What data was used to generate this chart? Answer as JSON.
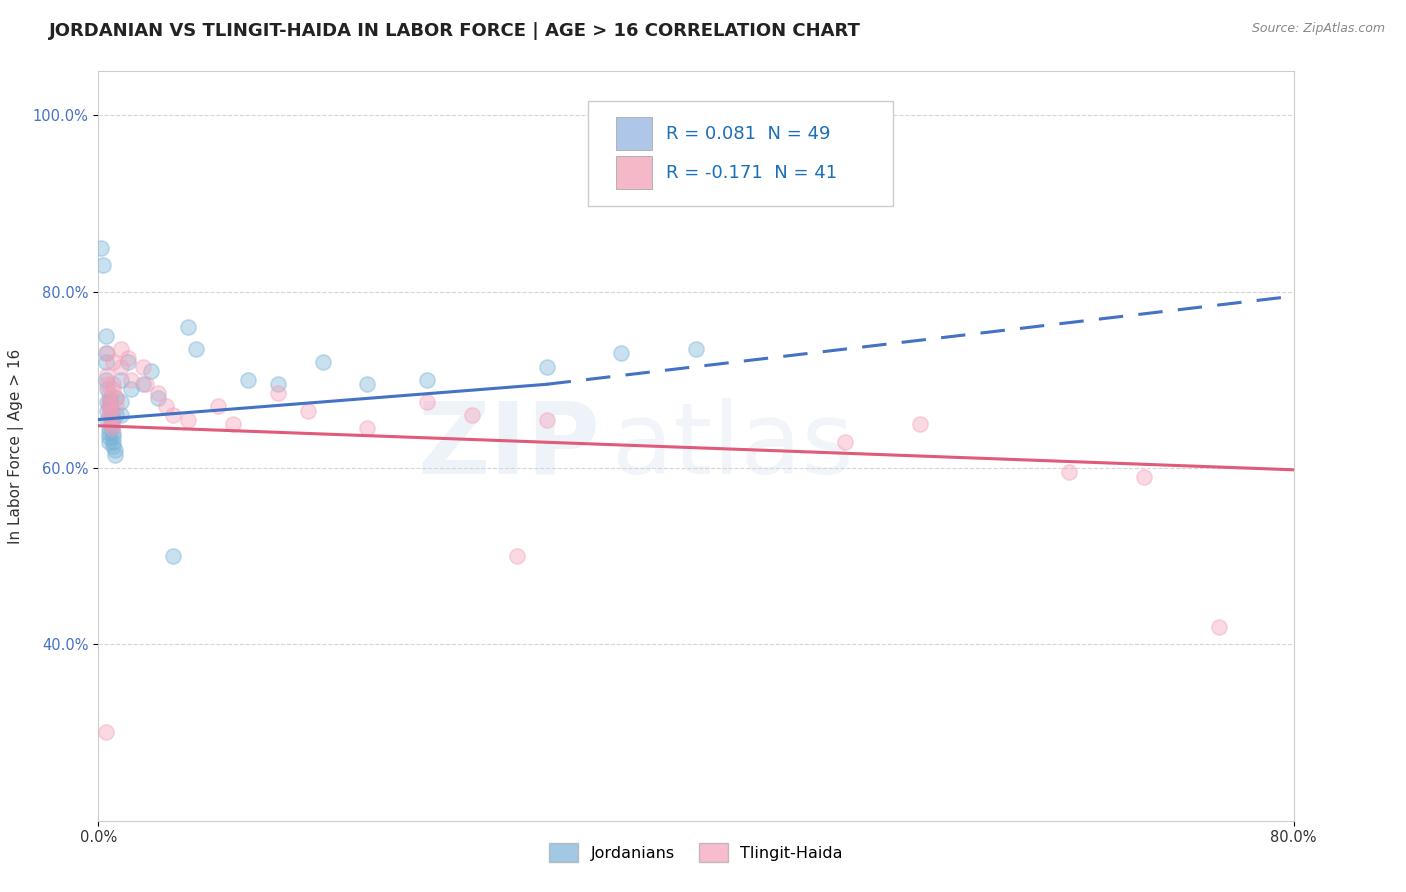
{
  "title": "JORDANIAN VS TLINGIT-HAIDA IN LABOR FORCE | AGE > 16 CORRELATION CHART",
  "source": "Source: ZipAtlas.com",
  "ylabel_label": "In Labor Force | Age > 16",
  "xmin": 0.0,
  "xmax": 0.8,
  "ymin": 0.2,
  "ymax": 1.05,
  "yticks": [
    0.4,
    0.6,
    0.8,
    1.0
  ],
  "ytick_labels": [
    "40.0%",
    "60.0%",
    "80.0%",
    "100.0%"
  ],
  "jordanian_color": "#7ab3d8",
  "tlingit_color": "#f4a0b8",
  "jordanian_scatter": [
    [
      0.002,
      0.85
    ],
    [
      0.003,
      0.83
    ],
    [
      0.005,
      0.75
    ],
    [
      0.005,
      0.73
    ],
    [
      0.005,
      0.72
    ],
    [
      0.005,
      0.7
    ],
    [
      0.006,
      0.69
    ],
    [
      0.006,
      0.675
    ],
    [
      0.006,
      0.665
    ],
    [
      0.006,
      0.655
    ],
    [
      0.007,
      0.645
    ],
    [
      0.007,
      0.64
    ],
    [
      0.007,
      0.635
    ],
    [
      0.007,
      0.63
    ],
    [
      0.008,
      0.68
    ],
    [
      0.008,
      0.675
    ],
    [
      0.008,
      0.67
    ],
    [
      0.008,
      0.665
    ],
    [
      0.009,
      0.66
    ],
    [
      0.009,
      0.655
    ],
    [
      0.009,
      0.65
    ],
    [
      0.009,
      0.645
    ],
    [
      0.01,
      0.64
    ],
    [
      0.01,
      0.635
    ],
    [
      0.01,
      0.63
    ],
    [
      0.01,
      0.625
    ],
    [
      0.011,
      0.62
    ],
    [
      0.011,
      0.615
    ],
    [
      0.012,
      0.68
    ],
    [
      0.012,
      0.66
    ],
    [
      0.015,
      0.7
    ],
    [
      0.015,
      0.675
    ],
    [
      0.015,
      0.66
    ],
    [
      0.02,
      0.72
    ],
    [
      0.022,
      0.69
    ],
    [
      0.03,
      0.695
    ],
    [
      0.035,
      0.71
    ],
    [
      0.04,
      0.68
    ],
    [
      0.05,
      0.5
    ],
    [
      0.06,
      0.76
    ],
    [
      0.065,
      0.735
    ],
    [
      0.1,
      0.7
    ],
    [
      0.12,
      0.695
    ],
    [
      0.15,
      0.72
    ],
    [
      0.18,
      0.695
    ],
    [
      0.22,
      0.7
    ],
    [
      0.3,
      0.715
    ],
    [
      0.35,
      0.73
    ],
    [
      0.4,
      0.735
    ]
  ],
  "tlingit_scatter": [
    [
      0.005,
      0.3
    ],
    [
      0.006,
      0.73
    ],
    [
      0.006,
      0.705
    ],
    [
      0.006,
      0.695
    ],
    [
      0.007,
      0.685
    ],
    [
      0.007,
      0.675
    ],
    [
      0.007,
      0.67
    ],
    [
      0.008,
      0.665
    ],
    [
      0.008,
      0.66
    ],
    [
      0.008,
      0.655
    ],
    [
      0.009,
      0.65
    ],
    [
      0.009,
      0.645
    ],
    [
      0.01,
      0.72
    ],
    [
      0.01,
      0.695
    ],
    [
      0.01,
      0.69
    ],
    [
      0.012,
      0.68
    ],
    [
      0.012,
      0.67
    ],
    [
      0.015,
      0.735
    ],
    [
      0.015,
      0.715
    ],
    [
      0.02,
      0.725
    ],
    [
      0.022,
      0.7
    ],
    [
      0.03,
      0.715
    ],
    [
      0.032,
      0.695
    ],
    [
      0.04,
      0.685
    ],
    [
      0.045,
      0.67
    ],
    [
      0.05,
      0.66
    ],
    [
      0.06,
      0.655
    ],
    [
      0.08,
      0.67
    ],
    [
      0.09,
      0.65
    ],
    [
      0.12,
      0.685
    ],
    [
      0.14,
      0.665
    ],
    [
      0.18,
      0.645
    ],
    [
      0.22,
      0.675
    ],
    [
      0.25,
      0.66
    ],
    [
      0.28,
      0.5
    ],
    [
      0.3,
      0.655
    ],
    [
      0.5,
      0.63
    ],
    [
      0.55,
      0.65
    ],
    [
      0.65,
      0.595
    ],
    [
      0.7,
      0.59
    ],
    [
      0.75,
      0.42
    ]
  ],
  "watermark_text": "ZIP",
  "watermark_text2": "atlas",
  "background_color": "#ffffff",
  "grid_color": "#cccccc",
  "title_fontsize": 13,
  "axis_label_fontsize": 11,
  "tick_fontsize": 10.5,
  "scatter_size": 120,
  "scatter_alpha": 0.4,
  "trend_jordan_color": "#4472c4",
  "trend_tlingit_color": "#e05a7a",
  "legend_r_color": "#1a6fba",
  "legend_entries": [
    {
      "label": "R = 0.081  N = 49",
      "color": "#aec6e8"
    },
    {
      "label": "R = -0.171  N = 41",
      "color": "#f4b8c8"
    }
  ],
  "jordan_trend_x_solid_end": 0.3,
  "jordan_trend_y_start": 0.655,
  "jordan_trend_y_at_solid_end": 0.695,
  "jordan_trend_y_end": 0.795,
  "tlingit_trend_y_start": 0.648,
  "tlingit_trend_y_end": 0.598
}
